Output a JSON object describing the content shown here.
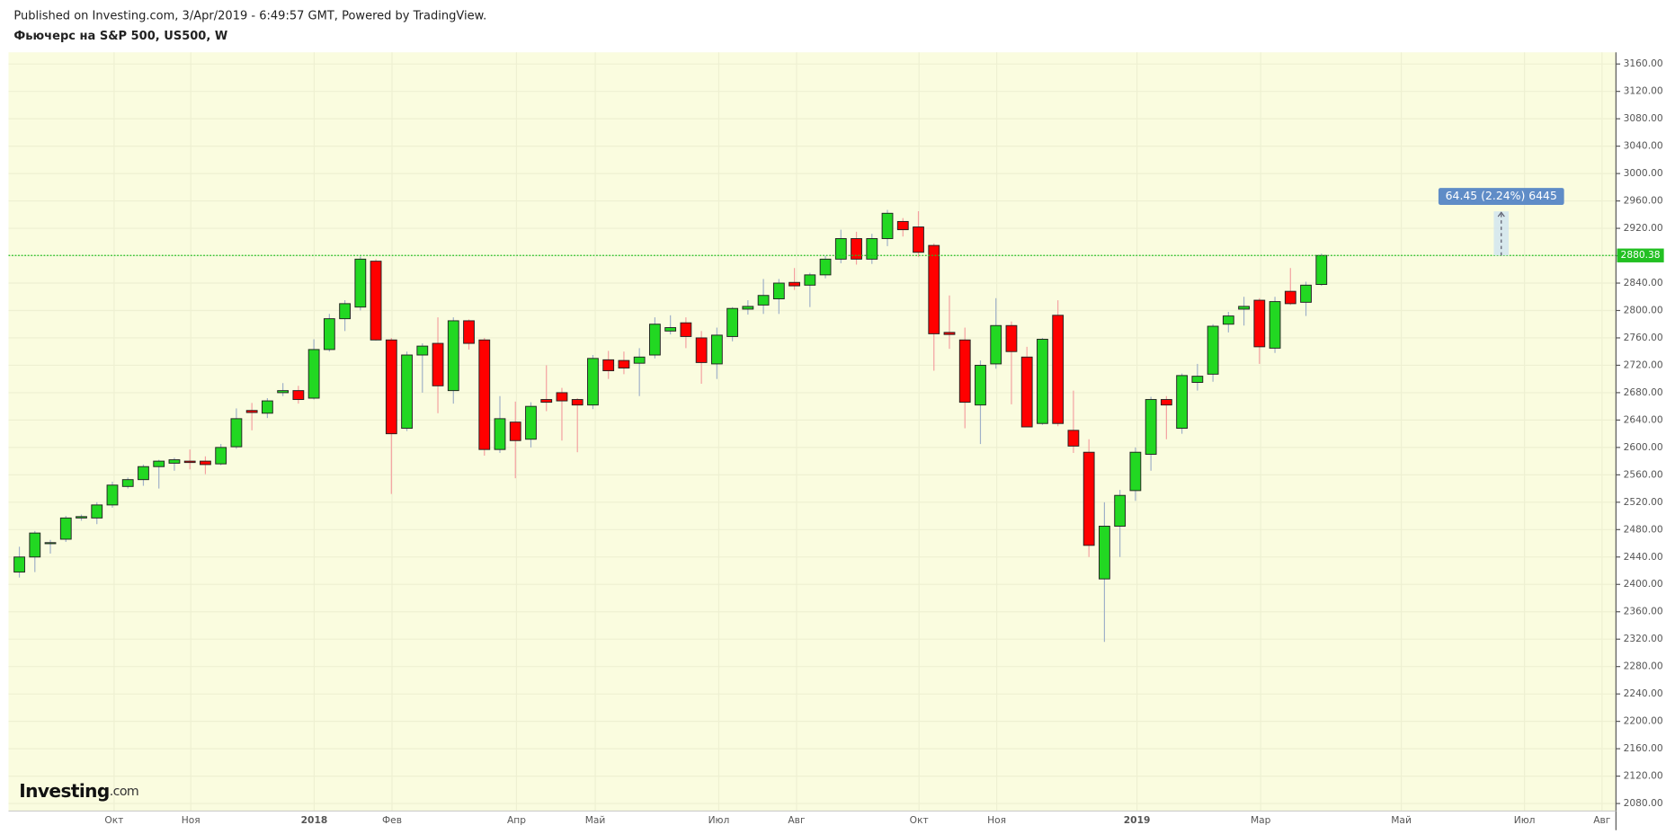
{
  "chart_data": {
    "type": "candlestick",
    "published": "Published on Investing.com, 3/Apr/2019 - 6:49:57 GMT, Powered by TradingView.",
    "title": "Фьючерс на S&P 500, US500, W",
    "logo": {
      "name": "Investing",
      "suffix": ".com"
    },
    "up_color": "#22d822",
    "down_color": "#ff0000",
    "background": "#fafcdf",
    "grid": true,
    "open": [
      2418,
      2440,
      2460,
      2466,
      2497,
      2497,
      2516,
      2543,
      2553,
      2572,
      2577,
      2580,
      2580,
      2576,
      2601,
      2654,
      2650,
      2680,
      2683,
      2672,
      2743,
      2788,
      2805,
      2872,
      2757,
      2628,
      2735,
      2752,
      2683,
      2785,
      2757,
      2597,
      2637,
      2612,
      2670,
      2680,
      2670,
      2662,
      2728,
      2727,
      2723,
      2735,
      2770,
      2782,
      2760,
      2722,
      2762,
      2802,
      2808,
      2817,
      2841,
      2837,
      2852,
      2875,
      2905,
      2875,
      2905,
      2930,
      2922,
      2895,
      2768,
      2757,
      2662,
      2722,
      2778,
      2732,
      2635,
      2793,
      2625,
      2593,
      2408,
      2485,
      2537,
      2590,
      2670,
      2628,
      2695,
      2707,
      2780,
      2802,
      2815,
      2745,
      2828,
      2812,
      2838
    ],
    "high": [
      2455,
      2478,
      2465,
      2500,
      2502,
      2520,
      2550,
      2556,
      2575,
      2582,
      2585,
      2597,
      2587,
      2605,
      2657,
      2665,
      2672,
      2694,
      2690,
      2758,
      2795,
      2815,
      2879,
      2875,
      2760,
      2740,
      2752,
      2790,
      2790,
      2787,
      2760,
      2675,
      2667,
      2666,
      2720,
      2687,
      2672,
      2735,
      2741,
      2740,
      2745,
      2790,
      2793,
      2790,
      2770,
      2775,
      2805,
      2815,
      2846,
      2846,
      2862,
      2855,
      2880,
      2918,
      2915,
      2912,
      2947,
      2935,
      2945,
      2898,
      2822,
      2775,
      2727,
      2818,
      2784,
      2747,
      2760,
      2815,
      2683,
      2612,
      2520,
      2538,
      2600,
      2674,
      2675,
      2708,
      2722,
      2780,
      2798,
      2820,
      2818,
      2820,
      2862,
      2842,
      2883
    ],
    "low": [
      2410,
      2418,
      2445,
      2462,
      2493,
      2488,
      2512,
      2540,
      2544,
      2540,
      2566,
      2568,
      2561,
      2574,
      2598,
      2625,
      2643,
      2675,
      2664,
      2670,
      2740,
      2770,
      2800,
      2756,
      2532,
      2624,
      2680,
      2650,
      2664,
      2743,
      2588,
      2592,
      2555,
      2600,
      2653,
      2610,
      2593,
      2656,
      2700,
      2707,
      2675,
      2730,
      2765,
      2745,
      2693,
      2700,
      2755,
      2794,
      2795,
      2795,
      2830,
      2805,
      2847,
      2869,
      2867,
      2868,
      2894,
      2908,
      2878,
      2712,
      2744,
      2628,
      2605,
      2715,
      2663,
      2630,
      2633,
      2631,
      2592,
      2440,
      2316,
      2440,
      2522,
      2566,
      2612,
      2620,
      2683,
      2696,
      2768,
      2778,
      2722,
      2738,
      2808,
      2792,
      2836
    ],
    "close": [
      2440,
      2475,
      2461,
      2497,
      2499,
      2516,
      2545,
      2553,
      2572,
      2580,
      2582,
      2578,
      2575,
      2600,
      2642,
      2651,
      2668,
      2683,
      2670,
      2743,
      2788,
      2810,
      2875,
      2757,
      2620,
      2735,
      2748,
      2690,
      2785,
      2752,
      2597,
      2642,
      2610,
      2660,
      2666,
      2668,
      2662,
      2730,
      2712,
      2716,
      2732,
      2780,
      2775,
      2762,
      2724,
      2764,
      2803,
      2806,
      2822,
      2840,
      2836,
      2852,
      2875,
      2905,
      2875,
      2905,
      2942,
      2918,
      2885,
      2766,
      2765,
      2666,
      2720,
      2778,
      2740,
      2630,
      2758,
      2635,
      2602,
      2457,
      2485,
      2530,
      2593,
      2670,
      2662,
      2705,
      2704,
      2777,
      2792,
      2806,
      2747,
      2813,
      2810,
      2837,
      2880.38
    ],
    "last_price": 2880.38,
    "measure": {
      "x": 95.6,
      "from": 2880.38,
      "to": 2944.83,
      "label": "64.45 (2.24%) 6445"
    },
    "xlim": [
      -0.7,
      103
    ],
    "xticks": [
      {
        "value": 6.11,
        "label": "Окт"
      },
      {
        "value": 11.06,
        "label": "Ноя"
      },
      {
        "value": 19.02,
        "label": "2018"
      },
      {
        "value": 24.04,
        "label": "Фев"
      },
      {
        "value": 32.07,
        "label": "Апр"
      },
      {
        "value": 37.15,
        "label": "Май"
      },
      {
        "value": 45.12,
        "label": "Июл"
      },
      {
        "value": 50.14,
        "label": "Авг"
      },
      {
        "value": 58.04,
        "label": "Окт"
      },
      {
        "value": 63.05,
        "label": "Ноя"
      },
      {
        "value": 72.1,
        "label": "2019"
      },
      {
        "value": 80.08,
        "label": "Мар"
      },
      {
        "value": 89.15,
        "label": "Май"
      },
      {
        "value": 97.1,
        "label": "Июл"
      },
      {
        "value": 102.1,
        "label": "Авг"
      }
    ],
    "ylim": [
      2069,
      3177
    ],
    "yticks": [
      {
        "value": 2080,
        "label": "2080.00"
      },
      {
        "value": 2120,
        "label": "2120.00"
      },
      {
        "value": 2160,
        "label": "2160.00"
      },
      {
        "value": 2200,
        "label": "2200.00"
      },
      {
        "value": 2240,
        "label": "2240.00"
      },
      {
        "value": 2280,
        "label": "2280.00"
      },
      {
        "value": 2320,
        "label": "2320.00"
      },
      {
        "value": 2360,
        "label": "2360.00"
      },
      {
        "value": 2400,
        "label": "2400.00"
      },
      {
        "value": 2440,
        "label": "2440.00"
      },
      {
        "value": 2480,
        "label": "2480.00"
      },
      {
        "value": 2520,
        "label": "2520.00"
      },
      {
        "value": 2560,
        "label": "2560.00"
      },
      {
        "value": 2600,
        "label": "2600.00"
      },
      {
        "value": 2640,
        "label": "2640.00"
      },
      {
        "value": 2680,
        "label": "2680.00"
      },
      {
        "value": 2720,
        "label": "2720.00"
      },
      {
        "value": 2760,
        "label": "2760.00"
      },
      {
        "value": 2800,
        "label": "2800.00"
      },
      {
        "value": 2840,
        "label": "2840.00"
      },
      {
        "value": 2880,
        "label": "2880.00"
      },
      {
        "value": 2920,
        "label": "2920.00"
      },
      {
        "value": 2960,
        "label": "2960.00"
      },
      {
        "value": 3000,
        "label": "3000.00"
      },
      {
        "value": 3040,
        "label": "3040.00"
      },
      {
        "value": 3080,
        "label": "3080.00"
      },
      {
        "value": 3120,
        "label": "3120.00"
      },
      {
        "value": 3160,
        "label": "3160.00"
      }
    ]
  }
}
